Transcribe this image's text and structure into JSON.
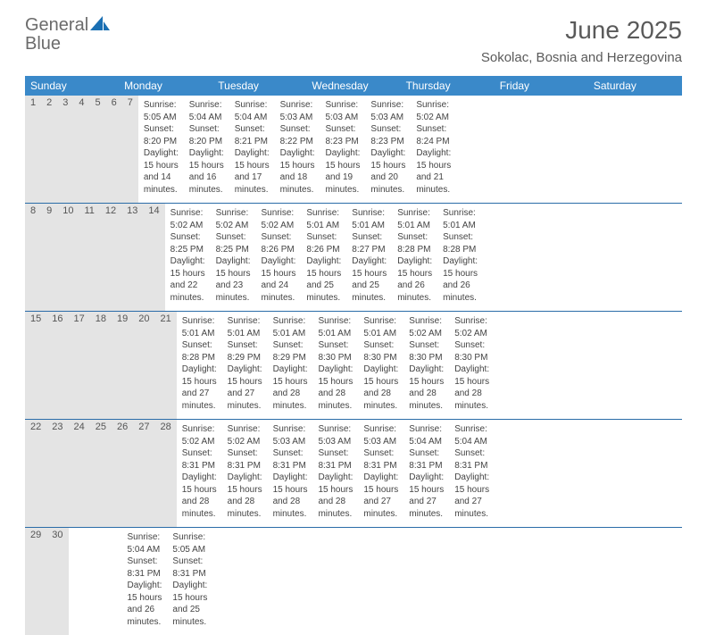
{
  "brand": {
    "word1": "General",
    "word2": "Blue",
    "text_color_gray": "#6b6b6b",
    "text_color_blue": "#1a6fb3",
    "sail_color": "#1a6fb3"
  },
  "header": {
    "month_title": "June 2025",
    "location": "Sokolac, Bosnia and Herzegovina",
    "title_color": "#5a5a5a",
    "title_fontsize": 28,
    "location_fontsize": 15
  },
  "styling": {
    "header_row_bg": "#3a89c9",
    "header_row_text": "#ffffff",
    "daynum_row_bg": "#e4e4e4",
    "week_border_color": "#2a6ca8",
    "body_text_color": "#444444",
    "body_fontsize": 10,
    "daynum_fontsize": 11,
    "header_fontsize": 12,
    "page_bg": "#ffffff"
  },
  "weekdays": [
    "Sunday",
    "Monday",
    "Tuesday",
    "Wednesday",
    "Thursday",
    "Friday",
    "Saturday"
  ],
  "weeks": [
    [
      {
        "num": "1",
        "sunrise": "Sunrise: 5:05 AM",
        "sunset": "Sunset: 8:20 PM",
        "daylight": "Daylight: 15 hours and 14 minutes."
      },
      {
        "num": "2",
        "sunrise": "Sunrise: 5:04 AM",
        "sunset": "Sunset: 8:20 PM",
        "daylight": "Daylight: 15 hours and 16 minutes."
      },
      {
        "num": "3",
        "sunrise": "Sunrise: 5:04 AM",
        "sunset": "Sunset: 8:21 PM",
        "daylight": "Daylight: 15 hours and 17 minutes."
      },
      {
        "num": "4",
        "sunrise": "Sunrise: 5:03 AM",
        "sunset": "Sunset: 8:22 PM",
        "daylight": "Daylight: 15 hours and 18 minutes."
      },
      {
        "num": "5",
        "sunrise": "Sunrise: 5:03 AM",
        "sunset": "Sunset: 8:23 PM",
        "daylight": "Daylight: 15 hours and 19 minutes."
      },
      {
        "num": "6",
        "sunrise": "Sunrise: 5:03 AM",
        "sunset": "Sunset: 8:23 PM",
        "daylight": "Daylight: 15 hours and 20 minutes."
      },
      {
        "num": "7",
        "sunrise": "Sunrise: 5:02 AM",
        "sunset": "Sunset: 8:24 PM",
        "daylight": "Daylight: 15 hours and 21 minutes."
      }
    ],
    [
      {
        "num": "8",
        "sunrise": "Sunrise: 5:02 AM",
        "sunset": "Sunset: 8:25 PM",
        "daylight": "Daylight: 15 hours and 22 minutes."
      },
      {
        "num": "9",
        "sunrise": "Sunrise: 5:02 AM",
        "sunset": "Sunset: 8:25 PM",
        "daylight": "Daylight: 15 hours and 23 minutes."
      },
      {
        "num": "10",
        "sunrise": "Sunrise: 5:02 AM",
        "sunset": "Sunset: 8:26 PM",
        "daylight": "Daylight: 15 hours and 24 minutes."
      },
      {
        "num": "11",
        "sunrise": "Sunrise: 5:01 AM",
        "sunset": "Sunset: 8:26 PM",
        "daylight": "Daylight: 15 hours and 25 minutes."
      },
      {
        "num": "12",
        "sunrise": "Sunrise: 5:01 AM",
        "sunset": "Sunset: 8:27 PM",
        "daylight": "Daylight: 15 hours and 25 minutes."
      },
      {
        "num": "13",
        "sunrise": "Sunrise: 5:01 AM",
        "sunset": "Sunset: 8:28 PM",
        "daylight": "Daylight: 15 hours and 26 minutes."
      },
      {
        "num": "14",
        "sunrise": "Sunrise: 5:01 AM",
        "sunset": "Sunset: 8:28 PM",
        "daylight": "Daylight: 15 hours and 26 minutes."
      }
    ],
    [
      {
        "num": "15",
        "sunrise": "Sunrise: 5:01 AM",
        "sunset": "Sunset: 8:28 PM",
        "daylight": "Daylight: 15 hours and 27 minutes."
      },
      {
        "num": "16",
        "sunrise": "Sunrise: 5:01 AM",
        "sunset": "Sunset: 8:29 PM",
        "daylight": "Daylight: 15 hours and 27 minutes."
      },
      {
        "num": "17",
        "sunrise": "Sunrise: 5:01 AM",
        "sunset": "Sunset: 8:29 PM",
        "daylight": "Daylight: 15 hours and 28 minutes."
      },
      {
        "num": "18",
        "sunrise": "Sunrise: 5:01 AM",
        "sunset": "Sunset: 8:30 PM",
        "daylight": "Daylight: 15 hours and 28 minutes."
      },
      {
        "num": "19",
        "sunrise": "Sunrise: 5:01 AM",
        "sunset": "Sunset: 8:30 PM",
        "daylight": "Daylight: 15 hours and 28 minutes."
      },
      {
        "num": "20",
        "sunrise": "Sunrise: 5:02 AM",
        "sunset": "Sunset: 8:30 PM",
        "daylight": "Daylight: 15 hours and 28 minutes."
      },
      {
        "num": "21",
        "sunrise": "Sunrise: 5:02 AM",
        "sunset": "Sunset: 8:30 PM",
        "daylight": "Daylight: 15 hours and 28 minutes."
      }
    ],
    [
      {
        "num": "22",
        "sunrise": "Sunrise: 5:02 AM",
        "sunset": "Sunset: 8:31 PM",
        "daylight": "Daylight: 15 hours and 28 minutes."
      },
      {
        "num": "23",
        "sunrise": "Sunrise: 5:02 AM",
        "sunset": "Sunset: 8:31 PM",
        "daylight": "Daylight: 15 hours and 28 minutes."
      },
      {
        "num": "24",
        "sunrise": "Sunrise: 5:03 AM",
        "sunset": "Sunset: 8:31 PM",
        "daylight": "Daylight: 15 hours and 28 minutes."
      },
      {
        "num": "25",
        "sunrise": "Sunrise: 5:03 AM",
        "sunset": "Sunset: 8:31 PM",
        "daylight": "Daylight: 15 hours and 28 minutes."
      },
      {
        "num": "26",
        "sunrise": "Sunrise: 5:03 AM",
        "sunset": "Sunset: 8:31 PM",
        "daylight": "Daylight: 15 hours and 27 minutes."
      },
      {
        "num": "27",
        "sunrise": "Sunrise: 5:04 AM",
        "sunset": "Sunset: 8:31 PM",
        "daylight": "Daylight: 15 hours and 27 minutes."
      },
      {
        "num": "28",
        "sunrise": "Sunrise: 5:04 AM",
        "sunset": "Sunset: 8:31 PM",
        "daylight": "Daylight: 15 hours and 27 minutes."
      }
    ],
    [
      {
        "num": "29",
        "sunrise": "Sunrise: 5:04 AM",
        "sunset": "Sunset: 8:31 PM",
        "daylight": "Daylight: 15 hours and 26 minutes."
      },
      {
        "num": "30",
        "sunrise": "Sunrise: 5:05 AM",
        "sunset": "Sunset: 8:31 PM",
        "daylight": "Daylight: 15 hours and 25 minutes."
      },
      {
        "num": "",
        "sunrise": "",
        "sunset": "",
        "daylight": ""
      },
      {
        "num": "",
        "sunrise": "",
        "sunset": "",
        "daylight": ""
      },
      {
        "num": "",
        "sunrise": "",
        "sunset": "",
        "daylight": ""
      },
      {
        "num": "",
        "sunrise": "",
        "sunset": "",
        "daylight": ""
      },
      {
        "num": "",
        "sunrise": "",
        "sunset": "",
        "daylight": ""
      }
    ]
  ]
}
